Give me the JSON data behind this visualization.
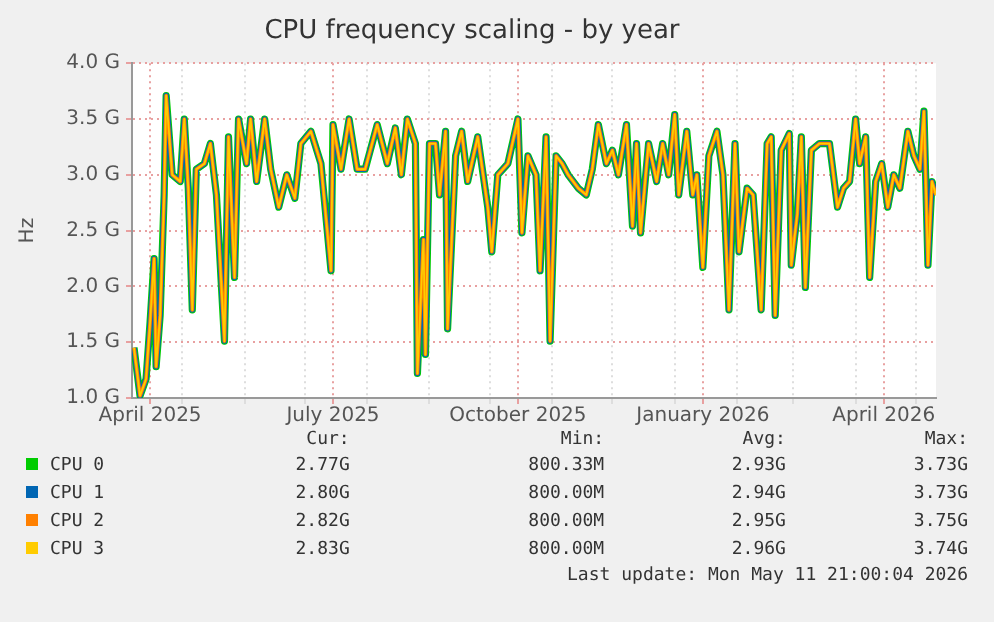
{
  "chart_data": {
    "type": "line",
    "title": "CPU frequency scaling - by year",
    "ylabel": "Hz",
    "x": [
      "2025-04-07",
      "2025-04-10",
      "2025-04-13",
      "2025-04-15",
      "2025-04-17",
      "2025-04-18",
      "2025-04-20",
      "2025-04-22",
      "2025-04-23",
      "2025-04-26",
      "2025-04-30",
      "2025-05-02",
      "2025-05-04",
      "2025-05-06",
      "2025-05-08",
      "2025-05-12",
      "2025-05-15",
      "2025-05-18",
      "2025-05-22",
      "2025-05-24",
      "2025-05-27",
      "2025-05-29",
      "2025-06-02",
      "2025-06-04",
      "2025-06-07",
      "2025-06-11",
      "2025-06-14",
      "2025-06-18",
      "2025-06-22",
      "2025-06-26",
      "2025-06-29",
      "2025-07-04",
      "2025-07-09",
      "2025-07-14",
      "2025-07-15",
      "2025-07-19",
      "2025-07-23",
      "2025-07-27",
      "2025-07-31",
      "2025-08-06",
      "2025-08-11",
      "2025-08-15",
      "2025-08-18",
      "2025-08-21",
      "2025-08-25",
      "2025-08-26",
      "2025-08-29",
      "2025-08-30",
      "2025-09-01",
      "2025-09-04",
      "2025-09-06",
      "2025-09-09",
      "2025-09-10",
      "2025-09-14",
      "2025-09-17",
      "2025-09-20",
      "2025-09-25",
      "2025-09-30",
      "2025-10-02",
      "2025-10-05",
      "2025-10-10",
      "2025-10-15",
      "2025-10-17",
      "2025-10-20",
      "2025-10-24",
      "2025-10-26",
      "2025-10-29",
      "2025-10-31",
      "2025-11-03",
      "2025-11-06",
      "2025-11-09",
      "2025-11-14",
      "2025-11-18",
      "2025-11-21",
      "2025-11-24",
      "2025-11-28",
      "2025-12-01",
      "2025-12-04",
      "2025-12-08",
      "2025-12-11",
      "2025-12-13",
      "2025-12-15",
      "2025-12-19",
      "2025-12-23",
      "2025-12-26",
      "2025-12-29",
      "2026-01-01",
      "2026-01-03",
      "2026-01-07",
      "2026-01-10",
      "2026-01-12",
      "2026-01-15",
      "2026-01-18",
      "2026-01-22",
      "2026-01-25",
      "2026-01-28",
      "2026-01-31",
      "2026-02-02",
      "2026-02-06",
      "2026-02-09",
      "2026-02-13",
      "2026-02-16",
      "2026-02-18",
      "2026-02-20",
      "2026-02-23",
      "2026-02-27",
      "2026-02-28",
      "2026-03-03",
      "2026-03-05",
      "2026-03-07",
      "2026-03-10",
      "2026-03-14",
      "2026-03-19",
      "2026-03-23",
      "2026-03-26",
      "2026-03-29",
      "2026-04-01",
      "2026-04-03",
      "2026-04-06",
      "2026-04-08",
      "2026-04-11",
      "2026-04-14",
      "2026-04-17",
      "2026-04-20",
      "2026-04-23",
      "2026-04-27",
      "2026-04-30",
      "2026-05-03",
      "2026-05-05",
      "2026-05-07",
      "2026-05-09",
      "2026-05-11"
    ],
    "series": [
      {
        "name": "CPU 0",
        "color": "#00cc00",
        "values": [
          1.45,
          1.02,
          1.17,
          1.68,
          2.25,
          1.28,
          1.74,
          2.82,
          3.71,
          3.0,
          2.94,
          3.5,
          2.88,
          1.79,
          3.05,
          3.1,
          3.28,
          2.82,
          1.51,
          3.34,
          2.08,
          3.5,
          3.1,
          3.5,
          2.94,
          3.5,
          3.05,
          2.71,
          3.0,
          2.79,
          3.28,
          3.39,
          3.1,
          2.14,
          3.45,
          3.05,
          3.5,
          3.05,
          3.05,
          3.45,
          3.1,
          3.42,
          3.0,
          3.5,
          3.28,
          1.22,
          2.42,
          1.39,
          3.28,
          3.28,
          2.82,
          3.39,
          1.62,
          3.17,
          3.39,
          2.94,
          3.34,
          2.71,
          2.31,
          3.0,
          3.1,
          3.5,
          2.48,
          3.17,
          3.0,
          2.14,
          3.34,
          1.51,
          3.17,
          3.1,
          3.0,
          2.88,
          2.82,
          3.05,
          3.45,
          3.1,
          3.22,
          3.0,
          3.45,
          2.54,
          3.28,
          2.48,
          3.28,
          2.94,
          3.28,
          3.0,
          3.54,
          2.82,
          3.39,
          2.82,
          3.0,
          2.17,
          3.17,
          3.39,
          3.0,
          1.79,
          3.28,
          2.31,
          2.88,
          2.82,
          1.79,
          3.28,
          3.34,
          1.74,
          3.22,
          3.37,
          2.19,
          2.65,
          3.34,
          1.99,
          3.22,
          3.28,
          3.28,
          2.71,
          2.88,
          2.94,
          3.5,
          3.1,
          3.34,
          2.08,
          2.94,
          3.1,
          2.71,
          3.0,
          2.88,
          3.39,
          3.17,
          3.05,
          3.57,
          2.19,
          2.94,
          2.82
        ]
      },
      {
        "name": "CPU 1",
        "color": "#0066b3",
        "values": [
          1.45,
          1.02,
          1.17,
          1.68,
          2.25,
          1.28,
          1.74,
          2.82,
          3.71,
          3.0,
          2.94,
          3.5,
          2.88,
          1.79,
          3.05,
          3.1,
          3.28,
          2.82,
          1.51,
          3.34,
          2.08,
          3.5,
          3.1,
          3.5,
          2.94,
          3.5,
          3.05,
          2.71,
          3.0,
          2.79,
          3.28,
          3.39,
          3.1,
          2.14,
          3.45,
          3.05,
          3.5,
          3.05,
          3.05,
          3.45,
          3.1,
          3.42,
          3.0,
          3.5,
          3.28,
          1.22,
          2.42,
          1.39,
          3.28,
          3.28,
          2.82,
          3.39,
          1.62,
          3.17,
          3.39,
          2.94,
          3.34,
          2.71,
          2.31,
          3.0,
          3.1,
          3.5,
          2.48,
          3.17,
          3.0,
          2.14,
          3.34,
          1.51,
          3.17,
          3.1,
          3.0,
          2.88,
          2.82,
          3.05,
          3.45,
          3.1,
          3.22,
          3.0,
          3.45,
          2.54,
          3.28,
          2.48,
          3.28,
          2.94,
          3.28,
          3.0,
          3.54,
          2.82,
          3.39,
          2.82,
          3.0,
          2.17,
          3.17,
          3.39,
          3.0,
          1.79,
          3.28,
          2.31,
          2.88,
          2.82,
          1.79,
          3.28,
          3.34,
          1.74,
          3.22,
          3.37,
          2.19,
          2.65,
          3.34,
          1.99,
          3.22,
          3.28,
          3.28,
          2.71,
          2.88,
          2.94,
          3.5,
          3.1,
          3.34,
          2.08,
          2.94,
          3.1,
          2.71,
          3.0,
          2.88,
          3.39,
          3.17,
          3.05,
          3.57,
          2.19,
          2.94,
          2.82
        ]
      },
      {
        "name": "CPU 2",
        "color": "#ff8000",
        "values": [
          1.45,
          1.02,
          1.17,
          1.68,
          2.25,
          1.28,
          1.74,
          2.82,
          3.71,
          3.0,
          2.94,
          3.5,
          2.88,
          1.79,
          3.05,
          3.1,
          3.28,
          2.82,
          1.51,
          3.34,
          2.08,
          3.5,
          3.1,
          3.5,
          2.94,
          3.5,
          3.05,
          2.71,
          3.0,
          2.79,
          3.28,
          3.39,
          3.1,
          2.14,
          3.45,
          3.05,
          3.5,
          3.05,
          3.05,
          3.45,
          3.1,
          3.42,
          3.0,
          3.5,
          3.28,
          1.22,
          2.42,
          1.39,
          3.28,
          3.28,
          2.82,
          3.39,
          1.62,
          3.17,
          3.39,
          2.94,
          3.34,
          2.71,
          2.31,
          3.0,
          3.1,
          3.5,
          2.48,
          3.17,
          3.0,
          2.14,
          3.34,
          1.51,
          3.17,
          3.1,
          3.0,
          2.88,
          2.82,
          3.05,
          3.45,
          3.1,
          3.22,
          3.0,
          3.45,
          2.54,
          3.28,
          2.48,
          3.28,
          2.94,
          3.28,
          3.0,
          3.54,
          2.82,
          3.39,
          2.82,
          3.0,
          2.17,
          3.17,
          3.39,
          3.0,
          1.79,
          3.28,
          2.31,
          2.88,
          2.82,
          1.79,
          3.28,
          3.34,
          1.74,
          3.22,
          3.37,
          2.19,
          2.65,
          3.34,
          1.99,
          3.22,
          3.28,
          3.28,
          2.71,
          2.88,
          2.94,
          3.5,
          3.1,
          3.34,
          2.08,
          2.94,
          3.1,
          2.71,
          3.0,
          2.88,
          3.39,
          3.17,
          3.05,
          3.57,
          2.19,
          2.94,
          2.82
        ]
      },
      {
        "name": "CPU 3",
        "color": "#ffcc00",
        "values": [
          1.45,
          1.02,
          1.17,
          1.68,
          2.25,
          1.28,
          1.74,
          2.82,
          3.71,
          3.0,
          2.94,
          3.5,
          2.88,
          1.79,
          3.05,
          3.1,
          3.28,
          2.82,
          1.51,
          3.34,
          2.08,
          3.5,
          3.1,
          3.5,
          2.94,
          3.5,
          3.05,
          2.71,
          3.0,
          2.79,
          3.28,
          3.39,
          3.1,
          2.14,
          3.45,
          3.05,
          3.5,
          3.05,
          3.05,
          3.45,
          3.1,
          3.42,
          3.0,
          3.5,
          3.28,
          1.22,
          2.42,
          1.39,
          3.28,
          3.28,
          2.82,
          3.39,
          1.62,
          3.17,
          3.39,
          2.94,
          3.34,
          2.71,
          2.31,
          3.0,
          3.1,
          3.5,
          2.48,
          3.17,
          3.0,
          2.14,
          3.34,
          1.51,
          3.17,
          3.1,
          3.0,
          2.88,
          2.82,
          3.05,
          3.45,
          3.1,
          3.22,
          3.0,
          3.45,
          2.54,
          3.28,
          2.48,
          3.28,
          2.94,
          3.28,
          3.0,
          3.54,
          2.82,
          3.39,
          2.82,
          3.0,
          2.17,
          3.17,
          3.39,
          3.0,
          1.79,
          3.28,
          2.31,
          2.88,
          2.82,
          1.79,
          3.28,
          3.34,
          1.74,
          3.22,
          3.37,
          2.19,
          2.65,
          3.34,
          1.99,
          3.22,
          3.28,
          3.28,
          2.71,
          2.88,
          2.94,
          3.5,
          3.1,
          3.34,
          2.08,
          2.94,
          3.1,
          2.71,
          3.0,
          2.88,
          3.39,
          3.17,
          3.05,
          3.57,
          2.19,
          2.94,
          2.82
        ]
      }
    ],
    "xlim": [
      "2025-04-06",
      "2026-05-11"
    ],
    "xticks": [
      {
        "value": "2025-04-15",
        "label": "April 2025"
      },
      {
        "value": "2025-05-01",
        "label": null
      },
      {
        "value": "2025-06-01",
        "label": null
      },
      {
        "value": "2025-07-01",
        "label": null
      },
      {
        "value": "2025-07-15",
        "label": "July 2025"
      },
      {
        "value": "2025-08-01",
        "label": null
      },
      {
        "value": "2025-09-01",
        "label": null
      },
      {
        "value": "2025-10-01",
        "label": null
      },
      {
        "value": "2025-10-15",
        "label": "October 2025"
      },
      {
        "value": "2025-11-01",
        "label": null
      },
      {
        "value": "2025-12-01",
        "label": null
      },
      {
        "value": "2026-01-01",
        "label": null
      },
      {
        "value": "2026-01-15",
        "label": "January 2026"
      },
      {
        "value": "2026-02-01",
        "label": null
      },
      {
        "value": "2026-03-01",
        "label": null
      },
      {
        "value": "2026-04-01",
        "label": null
      },
      {
        "value": "2026-04-15",
        "label": "April 2026"
      },
      {
        "value": "2026-05-01",
        "label": null
      }
    ],
    "ylim": [
      1,
      4
    ],
    "yticks": [
      {
        "value": 1,
        "label": "1.0 G"
      },
      {
        "value": 1.5,
        "label": "1.5 G"
      },
      {
        "value": 2,
        "label": "2.0 G"
      },
      {
        "value": 2.5,
        "label": "2.5 G"
      },
      {
        "value": 3,
        "label": "3.0 G"
      },
      {
        "value": 3.5,
        "label": "3.5 G"
      },
      {
        "value": 4,
        "label": "4.0 G"
      }
    ],
    "grid": true,
    "legend": "bottom",
    "marker": "none",
    "line_style": "solid",
    "annotations": [
      "Cur:",
      "Min:",
      "Avg:",
      "Max:",
      "2.77G",
      "800.33M",
      "2.93G",
      "3.73G",
      "2.80G",
      "800.00M",
      "2.94G",
      "3.73G",
      "2.82G",
      "800.00M",
      "2.95G",
      "3.75G",
      "2.83G",
      "800.00M",
      "2.96G",
      "3.74G",
      "Last update: Mon May 11 21:00:04 2026"
    ]
  }
}
